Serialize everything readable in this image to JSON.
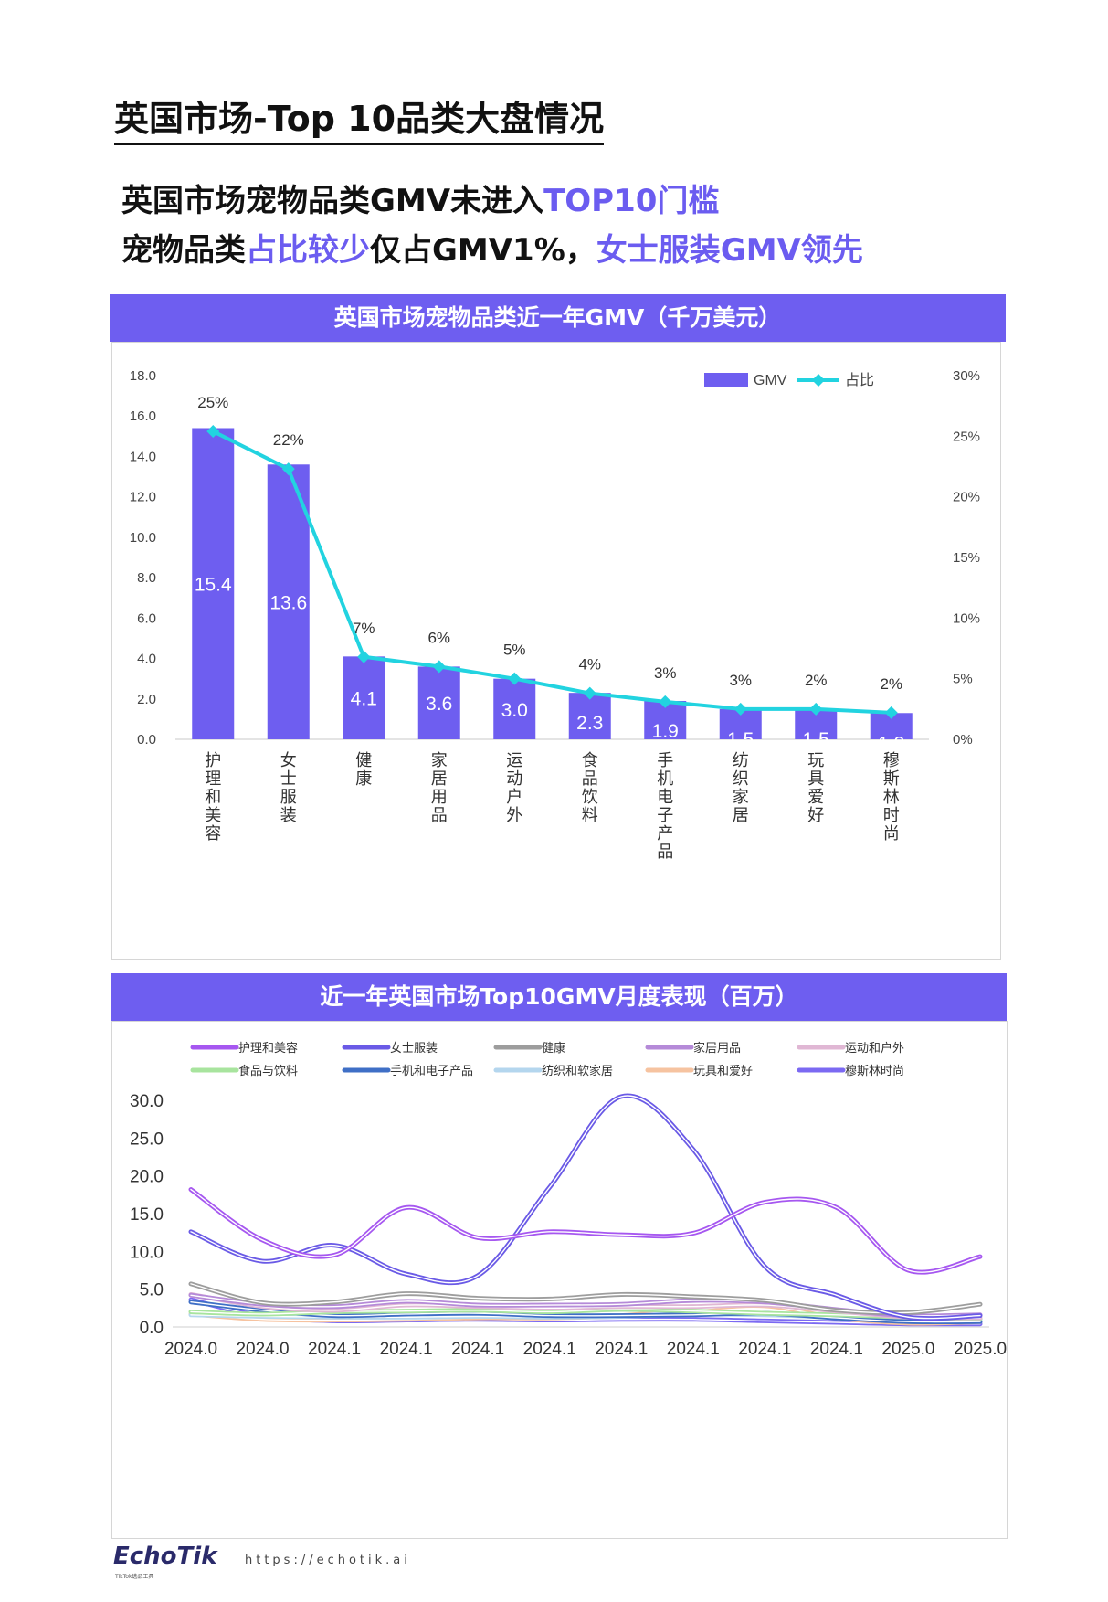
{
  "page_title": "英国市场-Top 10品类大盘情况",
  "headline": {
    "line1_a": "英国市场宠物品类GMV未进入",
    "line1_b": "TOP10门槛",
    "line2_a": "宠物品类",
    "line2_b": "占比较少",
    "line2_c": "仅占GMV1%，",
    "line2_d": "女士服装GMV领先"
  },
  "colors": {
    "accent": "#6e5ef0",
    "bar": "#6e5ef0",
    "share_line": "#22d3e0"
  },
  "footer": {
    "logo": "EchoTik",
    "logo_sub": "TikTok选品工具",
    "url": "https://echotik.ai"
  },
  "chart_data": [
    {
      "type": "bar",
      "title": "英国市场宠物品类近一年GMV（千万美元）",
      "categories": [
        "护理和美容",
        "女士服装",
        "健康",
        "家居用品",
        "运动户外",
        "食品饮料",
        "手机电子产品",
        "纺织家居",
        "玩具爱好",
        "穆斯林时尚"
      ],
      "series": [
        {
          "name": "GMV",
          "values": [
            15.4,
            13.6,
            4.1,
            3.6,
            3.0,
            2.3,
            1.9,
            1.5,
            1.5,
            1.3
          ],
          "labels": [
            "15.4",
            "13.6",
            "4.1",
            "3.6",
            "3.0",
            "2.3",
            "1.9",
            "1.5",
            "1.5",
            "1.3"
          ]
        },
        {
          "name": "占比",
          "type": "line",
          "axis": "right",
          "values": [
            25.4,
            22.3,
            6.8,
            6.0,
            5.0,
            3.8,
            3.1,
            2.5,
            2.5,
            2.2
          ],
          "labels": [
            "25%",
            "22%",
            "7%",
            "6%",
            "5%",
            "4%",
            "3%",
            "3%",
            "2%",
            "2%"
          ]
        }
      ],
      "y_left": {
        "range": [
          0,
          18
        ],
        "ticks": [
          "0.0",
          "2.0",
          "4.0",
          "6.0",
          "8.0",
          "10.0",
          "12.0",
          "14.0",
          "16.0",
          "18.0"
        ]
      },
      "y_right": {
        "range": [
          0,
          30
        ],
        "ticks": [
          "0%",
          "5%",
          "10%",
          "15%",
          "20%",
          "25%",
          "30%"
        ]
      },
      "legend": "top-right",
      "grid": false
    },
    {
      "type": "line",
      "title": "近一年英国市场Top10GMV月度表现（百万）",
      "x": [
        "2024.0",
        "2024.0",
        "2024.1",
        "2024.1",
        "2024.1",
        "2024.1",
        "2024.1",
        "2024.1",
        "2024.1",
        "2024.1",
        "2025.0",
        "2025.0"
      ],
      "ylim": [
        0,
        30
      ],
      "y_ticks": [
        "0.0",
        "5.0",
        "10.0",
        "15.0",
        "20.0",
        "25.0",
        "30.0"
      ],
      "legend": "top",
      "grid": false,
      "series": [
        {
          "name": "护理和美容",
          "color": "#a657f0",
          "values": [
            18.2,
            11.5,
            9.5,
            15.8,
            11.8,
            12.6,
            12.2,
            12.4,
            16.5,
            15.8,
            7.5,
            9.3
          ]
        },
        {
          "name": "女士服装",
          "color": "#6a5ae6",
          "values": [
            12.6,
            8.7,
            10.8,
            7.0,
            6.8,
            18.5,
            30.5,
            23.5,
            8.0,
            4.2,
            1.3,
            1.5
          ]
        },
        {
          "name": "健康",
          "color": "#9d9d9d",
          "values": [
            5.7,
            3.2,
            3.3,
            4.4,
            3.8,
            3.7,
            4.3,
            4.0,
            3.5,
            2.2,
            1.9,
            3.0
          ]
        },
        {
          "name": "家居用品",
          "color": "#b58ad8",
          "values": [
            4.2,
            3.0,
            2.7,
            3.4,
            2.9,
            2.9,
            3.0,
            3.5,
            3.3,
            2.3,
            1.5,
            1.6
          ]
        },
        {
          "name": "运动和户外",
          "color": "#e0b7d4",
          "values": [
            4.3,
            2.7,
            2.2,
            2.9,
            2.7,
            2.5,
            2.7,
            2.7,
            2.9,
            2.1,
            1.3,
            1.2
          ]
        },
        {
          "name": "食品与饮料",
          "color": "#a8e49e",
          "values": [
            2.0,
            1.7,
            2.0,
            2.1,
            2.2,
            2.0,
            2.3,
            2.1,
            1.8,
            1.6,
            1.3,
            1.1
          ]
        },
        {
          "name": "手机和电子产品",
          "color": "#3f6fc6",
          "values": [
            3.3,
            2.2,
            1.5,
            1.7,
            1.8,
            1.5,
            1.5,
            1.6,
            1.8,
            1.2,
            0.7,
            0.7
          ]
        },
        {
          "name": "纺织和软家居",
          "color": "#b4d6ee",
          "values": [
            1.6,
            1.4,
            1.3,
            1.3,
            1.4,
            1.3,
            1.4,
            1.7,
            1.6,
            1.3,
            0.9,
            1.0
          ]
        },
        {
          "name": "玩具和爱好",
          "color": "#f6c3a0",
          "values": [
            1.7,
            1.0,
            0.9,
            1.0,
            1.2,
            1.2,
            1.5,
            2.3,
            2.8,
            1.2,
            0.5,
            0.7
          ]
        },
        {
          "name": "穆斯林时尚",
          "color": "#7b69f2",
          "values": [
            3.6,
            1.4,
            0.8,
            0.9,
            1.0,
            0.9,
            1.0,
            1.0,
            0.8,
            0.6,
            0.4,
            0.4
          ]
        }
      ]
    }
  ]
}
